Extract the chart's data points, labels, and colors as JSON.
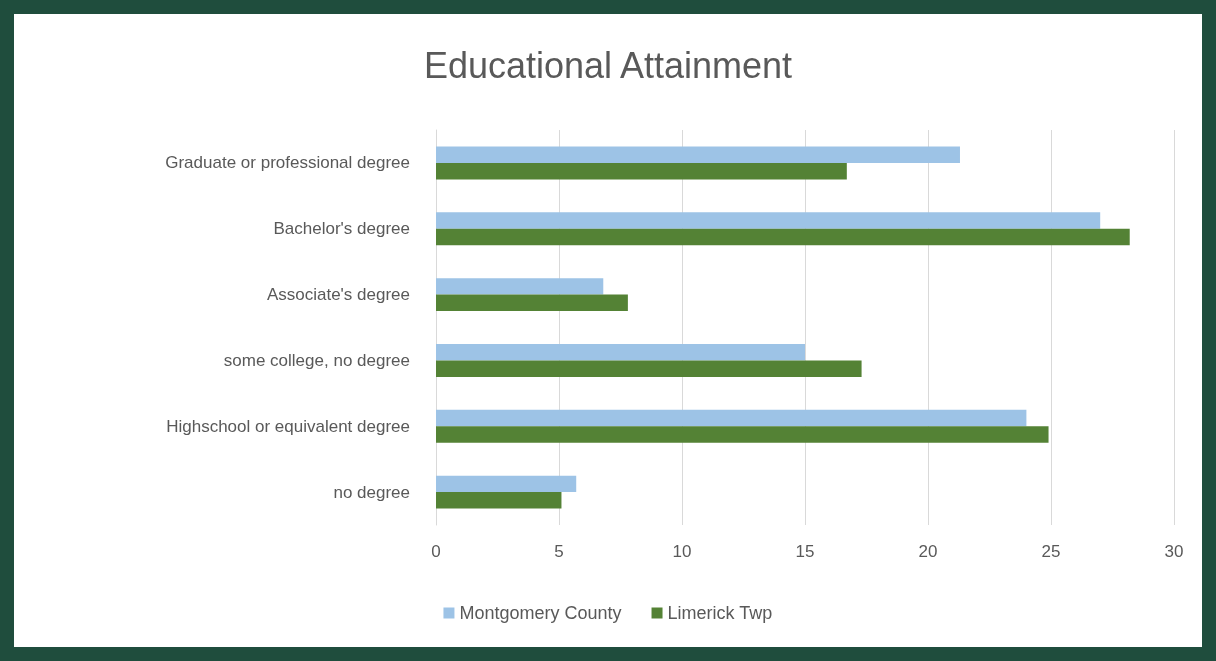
{
  "chart_data": {
    "type": "bar",
    "orientation": "horizontal",
    "title": "Educational Attainment",
    "categories": [
      "Graduate or professional degree",
      "Bachelor's degree",
      "Associate's degree",
      "some college, no degree",
      "Highschool or equivalent degree",
      "no degree"
    ],
    "series": [
      {
        "name": "Montgomery County",
        "color": "#9dc3e6",
        "values": [
          21.3,
          27.0,
          6.8,
          15.0,
          24.0,
          5.7
        ]
      },
      {
        "name": "Limerick Twp",
        "color": "#548235",
        "values": [
          16.7,
          28.2,
          7.8,
          17.3,
          24.9,
          5.1
        ]
      }
    ],
    "xlim": [
      0,
      30
    ],
    "xticks": [
      0,
      5,
      10,
      15,
      20,
      25,
      30
    ],
    "grid": "x",
    "legend": "bottom"
  }
}
